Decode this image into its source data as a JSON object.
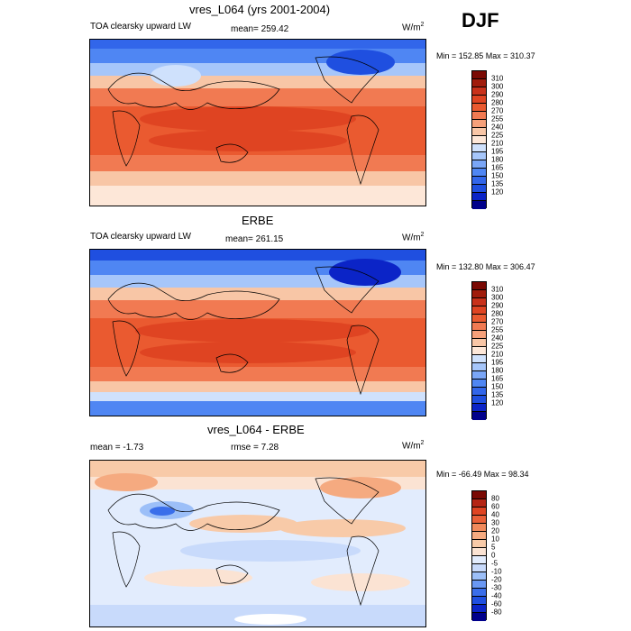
{
  "season": "DJF",
  "colors": {
    "abs": [
      "#00008b",
      "#0b24c7",
      "#1f4fe0",
      "#3266ea",
      "#4f86f3",
      "#7aa6f7",
      "#a6c6fa",
      "#cfe1fc",
      "#fde7d8",
      "#f8c6a6",
      "#f5a07a",
      "#f17a52",
      "#ea5a30",
      "#df4422",
      "#c8311a",
      "#a01c0c",
      "#7a0a04"
    ],
    "diff": [
      "#00008b",
      "#0b24c7",
      "#1f4fe0",
      "#3a6eea",
      "#6a98f3",
      "#9cbff8",
      "#c8dafb",
      "#e2ecfd",
      "#fbe3d3",
      "#f8caa8",
      "#f5aa80",
      "#f18a5c",
      "#ea6038",
      "#df4422",
      "#b52514",
      "#7a0a04"
    ]
  },
  "panels": [
    {
      "title": "vres_L064 (yrs 2001-2004)",
      "left_label": "TOA clearsky upward LW",
      "center_label": "mean= 259.42",
      "units": "W/m",
      "units_sup": "2",
      "minmax": "Min = 152.85 Max = 310.37",
      "palette": "abs",
      "levels": [
        "310",
        "300",
        "290",
        "280",
        "270",
        "255",
        "240",
        "225",
        "210",
        "195",
        "180",
        "165",
        "150",
        "135",
        "120"
      ]
    },
    {
      "title": "ERBE",
      "left_label": "TOA clearsky upward LW",
      "center_label": "mean= 261.15",
      "units": "W/m",
      "units_sup": "2",
      "minmax": "Min = 132.80 Max = 306.47",
      "palette": "abs",
      "levels": [
        "310",
        "300",
        "290",
        "280",
        "270",
        "255",
        "240",
        "225",
        "210",
        "195",
        "180",
        "165",
        "150",
        "135",
        "120"
      ]
    },
    {
      "title": "vres_L064 - ERBE",
      "left_label": "mean =  -1.73",
      "center_label": "rmse =   7.28",
      "units": "W/m",
      "units_sup": "2",
      "minmax": "Min = -66.49 Max =  98.34",
      "palette": "diff",
      "levels": [
        "80",
        "60",
        "40",
        "30",
        "20",
        "10",
        "5",
        "0",
        "-5",
        "-10",
        "-20",
        "-30",
        "-40",
        "-60",
        "-80"
      ]
    }
  ]
}
